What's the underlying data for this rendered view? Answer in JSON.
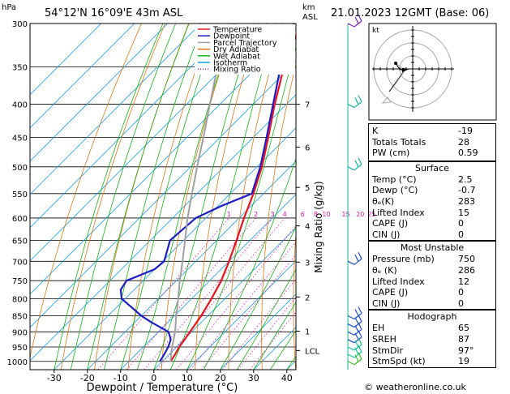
{
  "header": {
    "hpa_label": "hPa",
    "location": "54°12'N 16°09'E 43m ASL",
    "km_label": "km",
    "asl_label": "ASL",
    "datetime": "21.01.2023 12GMT (Base: 06)"
  },
  "legend": [
    {
      "name": "Temperature",
      "color": "#e8141e",
      "style": "solid"
    },
    {
      "name": "Dewpoint",
      "color": "#1e1ec8",
      "style": "solid"
    },
    {
      "name": "Parcel Trajectory",
      "color": "#a0a0a0",
      "style": "solid"
    },
    {
      "name": "Dry Adiabat",
      "color": "#e07814",
      "style": "solid"
    },
    {
      "name": "Wet Adiabat",
      "color": "#14b414",
      "style": "solid"
    },
    {
      "name": "Isotherm",
      "color": "#14a0e6",
      "style": "solid"
    },
    {
      "name": "Mixing Ratio",
      "color": "#e614b4",
      "style": "dotted"
    }
  ],
  "chart_data": {
    "type": "skew-t",
    "xlabel": "Dewpoint / Temperature (°C)",
    "right_axis_label": "Mixing Ratio (g/kg)",
    "pressure_ticks": [
      300,
      350,
      400,
      450,
      500,
      550,
      600,
      650,
      700,
      750,
      800,
      850,
      900,
      950,
      1000
    ],
    "temp_ticks": [
      -30,
      -20,
      -10,
      0,
      10,
      20,
      30,
      40
    ],
    "xlim": [
      -40,
      40
    ],
    "ylim": [
      1030,
      300
    ],
    "km_ticks": [
      {
        "label": "7",
        "p": 400
      },
      {
        "label": "6",
        "p": 466
      },
      {
        "label": "5",
        "p": 538
      },
      {
        "label": "4",
        "p": 617
      },
      {
        "label": "3",
        "p": 702
      },
      {
        "label": "2",
        "p": 795
      },
      {
        "label": "1",
        "p": 898
      },
      {
        "label": "LCL",
        "p": 962
      }
    ],
    "mixing_ratio_labels": [
      "1",
      "2",
      "3",
      "4",
      "6",
      "8",
      "10",
      "15",
      "20",
      "25"
    ],
    "mixing_ratio_values": [
      1,
      2,
      3,
      4,
      6,
      8,
      10,
      15,
      20,
      25
    ],
    "series": [
      {
        "name": "Temperature",
        "p": [
          1000,
          975,
          950,
          925,
          900,
          850,
          800,
          750,
          700,
          650,
          600,
          550,
          500,
          450,
          400,
          350,
          300
        ],
        "t": [
          2.5,
          1.8,
          0.8,
          0.2,
          -0.5,
          -2.0,
          -4.0,
          -6.5,
          -10.0,
          -14.0,
          -18.5,
          -23.0,
          -28.5,
          -35.5,
          -43.5,
          -52.0,
          -60.0
        ]
      },
      {
        "name": "Dewpoint",
        "p": [
          1000,
          975,
          950,
          925,
          900,
          870,
          850,
          800,
          775,
          750,
          720,
          700,
          650,
          600,
          575,
          550,
          500,
          450,
          400,
          350,
          300
        ],
        "t": [
          -0.7,
          -1.5,
          -2.5,
          -4.0,
          -7.0,
          -15.0,
          -20.0,
          -31.0,
          -34.0,
          -35.0,
          -30.0,
          -29.5,
          -34.0,
          -33.0,
          -29.0,
          -23.5,
          -29.0,
          -36.0,
          -44.0,
          -53.0,
          -62.0
        ]
      },
      {
        "name": "Parcel Trajectory",
        "p": [
          1000,
          962,
          900,
          850,
          800,
          750,
          700,
          650,
          600,
          550,
          500,
          450,
          400,
          350,
          300
        ],
        "t": [
          2.5,
          -0.5,
          -5.0,
          -9.5,
          -14.0,
          -19.0,
          -24.0,
          -29.5,
          -35.5,
          -41.5,
          -48.0,
          -55.0,
          -63.0,
          -72.0,
          -81.0
        ]
      }
    ]
  },
  "wind_barbs": [
    {
      "p": 300,
      "color": "#8020c0"
    },
    {
      "p": 400,
      "color": "#14b4a0"
    },
    {
      "p": 500,
      "color": "#14b4a0"
    },
    {
      "p": 700,
      "color": "#1e50d0"
    },
    {
      "p": 850,
      "color": "#1e50d0"
    },
    {
      "p": 875,
      "color": "#1e50d0"
    },
    {
      "p": 900,
      "color": "#1e50d0"
    },
    {
      "p": 925,
      "color": "#1e50d0"
    },
    {
      "p": 950,
      "color": "#14c8a0"
    },
    {
      "p": 975,
      "color": "#14c8a0"
    },
    {
      "p": 1000,
      "color": "#40c020"
    }
  ],
  "hodograph": {
    "label": "kt"
  },
  "indices": [
    {
      "label": "K",
      "value": "-19"
    },
    {
      "label": "Totals Totals",
      "value": "28"
    },
    {
      "label": "PW (cm)",
      "value": "0.59"
    }
  ],
  "surface": {
    "title": "Surface",
    "rows": [
      {
        "label": "Temp (°C)",
        "value": "2.5"
      },
      {
        "label": "Dewp (°C)",
        "value": "-0.7"
      },
      {
        "label": "θₑ(K)",
        "value": "283"
      },
      {
        "label": "Lifted Index",
        "value": "15"
      },
      {
        "label": "CAPE (J)",
        "value": "0"
      },
      {
        "label": "CIN (J)",
        "value": "0"
      }
    ]
  },
  "most_unstable": {
    "title": "Most Unstable",
    "rows": [
      {
        "label": "Pressure (mb)",
        "value": "750"
      },
      {
        "label": "θₑ (K)",
        "value": "286"
      },
      {
        "label": "Lifted Index",
        "value": "12"
      },
      {
        "label": "CAPE (J)",
        "value": "0"
      },
      {
        "label": "CIN (J)",
        "value": "0"
      }
    ]
  },
  "hodograph_table": {
    "title": "Hodograph",
    "rows": [
      {
        "label": "EH",
        "value": "65"
      },
      {
        "label": "SREH",
        "value": "87"
      },
      {
        "label": "StmDir",
        "value": "97°"
      },
      {
        "label": "StmSpd (kt)",
        "value": "19"
      }
    ]
  },
  "footer": {
    "copyright": "© weatheronline.co.uk"
  }
}
